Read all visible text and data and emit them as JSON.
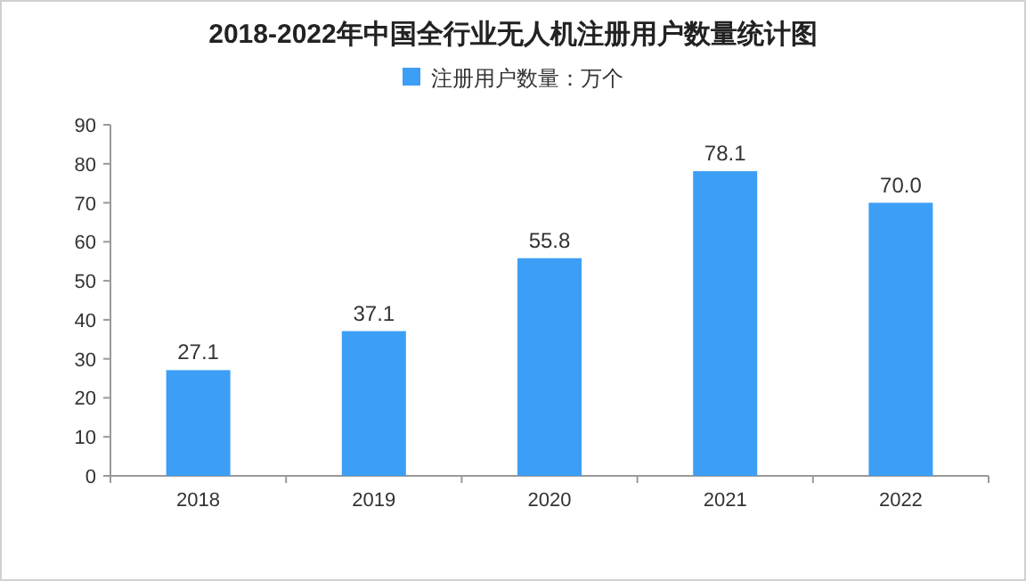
{
  "chart_data": {
    "type": "bar",
    "title": "2018-2022年中国全行业无人机注册用户数量统计图",
    "categories": [
      "2018",
      "2019",
      "2020",
      "2021",
      "2022"
    ],
    "series": [
      {
        "name": "注册用户数量：万个",
        "color": "#3d9ef5",
        "values": [
          27.1,
          37.1,
          55.8,
          78.1,
          70.0
        ],
        "value_labels": [
          "27.1",
          "37.1",
          "55.8",
          "78.1",
          "70.0"
        ]
      }
    ],
    "ylim": [
      0,
      90
    ],
    "yticks": [
      0,
      10,
      20,
      30,
      40,
      50,
      60,
      70,
      80,
      90
    ],
    "legend": "top",
    "grid": false
  }
}
